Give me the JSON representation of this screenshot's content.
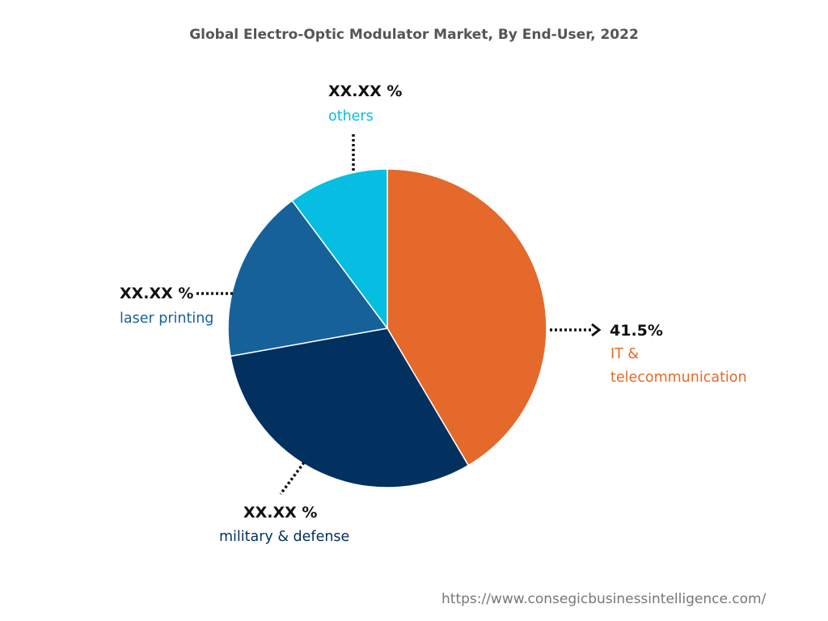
{
  "chart_data": {
    "type": "pie",
    "title": "Global Electro-Optic Modulator Market, By End-User, 2022",
    "slices": [
      {
        "name": "IT & telecommunication",
        "value": 41.5,
        "label": "41.5%",
        "color": "#E4692A"
      },
      {
        "name": "military & defense",
        "value": 30.7,
        "label": "XX.XX %",
        "color": "#02305F"
      },
      {
        "name": "laser printing",
        "value": 17.6,
        "label": "XX.XX %",
        "color": "#16619A"
      },
      {
        "name": "others",
        "value": 10.2,
        "label": "XX.XX %",
        "color": "#05BEE1"
      }
    ],
    "start": "top",
    "direction": "clockwise"
  },
  "labels": {
    "it_line1": "IT &",
    "it_line2": "telecommunication"
  },
  "source_url": "https://www.consegicbusinessintelligence.com/"
}
